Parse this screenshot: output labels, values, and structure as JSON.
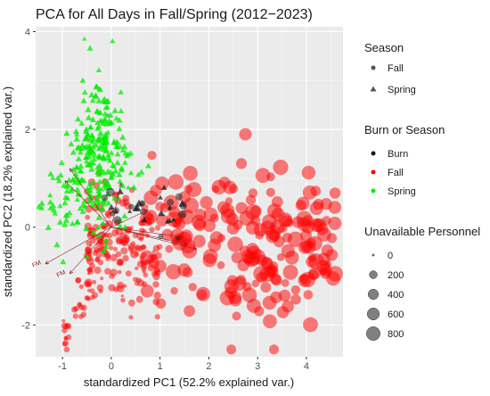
{
  "chart_data": {
    "type": "scatter",
    "title": "PCA for All Days in Fall/Spring (2012−2023)",
    "xlabel": "standardized PC1 (52.2% explained var.)",
    "ylabel": "standardized PC2 (18.2% explained var.)",
    "xlim": [
      -1.55,
      4.75
    ],
    "ylim": [
      -2.65,
      4.1
    ],
    "x_ticks": [
      -1,
      0,
      1,
      2,
      3,
      4
    ],
    "y_ticks": [
      -2,
      0,
      2,
      4
    ],
    "grid": true,
    "series": [
      {
        "name": "Spring",
        "color": "#00ee00",
        "shape": "triangle",
        "approx_count": 280,
        "x_range": [
          -1.1,
          0.45
        ],
        "y_range": [
          -1.4,
          3.9
        ]
      },
      {
        "name": "Fall",
        "color": "#ff0000",
        "shape": "circle",
        "approx_count": 400,
        "x_range": [
          -1.0,
          4.6
        ],
        "y_range": [
          -2.45,
          1.9
        ]
      },
      {
        "name": "Burn",
        "color": "#1a1a1a",
        "shape": "circle",
        "approx_count": 30,
        "x_range": [
          -0.3,
          1.6
        ],
        "y_range": [
          0.3,
          1.0
        ]
      }
    ],
    "loading_vectors": [
      {
        "label": "",
        "x": -0.95,
        "y": 0.95
      },
      {
        "label": "",
        "x": -0.85,
        "y": 1.2
      },
      {
        "label": "FM",
        "x": -1.35,
        "y": -0.75
      },
      {
        "label": "FM",
        "x": -0.85,
        "y": -0.95
      },
      {
        "label": "",
        "x": 1.45,
        "y": -0.2
      },
      {
        "label": "",
        "x": 1.55,
        "y": -0.35
      },
      {
        "label": "",
        "x": 1.75,
        "y": -0.45
      },
      {
        "label": "",
        "x": 0.75,
        "y": 0.35
      },
      {
        "label": "",
        "x": 0.2,
        "y": 0.9
      }
    ],
    "legends": {
      "season": {
        "title": "Season",
        "items": [
          "Fall",
          "Spring"
        ]
      },
      "burn_or_season": {
        "title": "Burn or Season",
        "items": [
          {
            "label": "Burn",
            "color": "#1a1a1a"
          },
          {
            "label": "Fall",
            "color": "#ff0000"
          },
          {
            "label": "Spring",
            "color": "#00ee00"
          }
        ]
      },
      "personnel": {
        "title": "Unavailable Personnel",
        "items": [
          0,
          200,
          400,
          600,
          800
        ]
      }
    },
    "legend_placement": "right"
  }
}
